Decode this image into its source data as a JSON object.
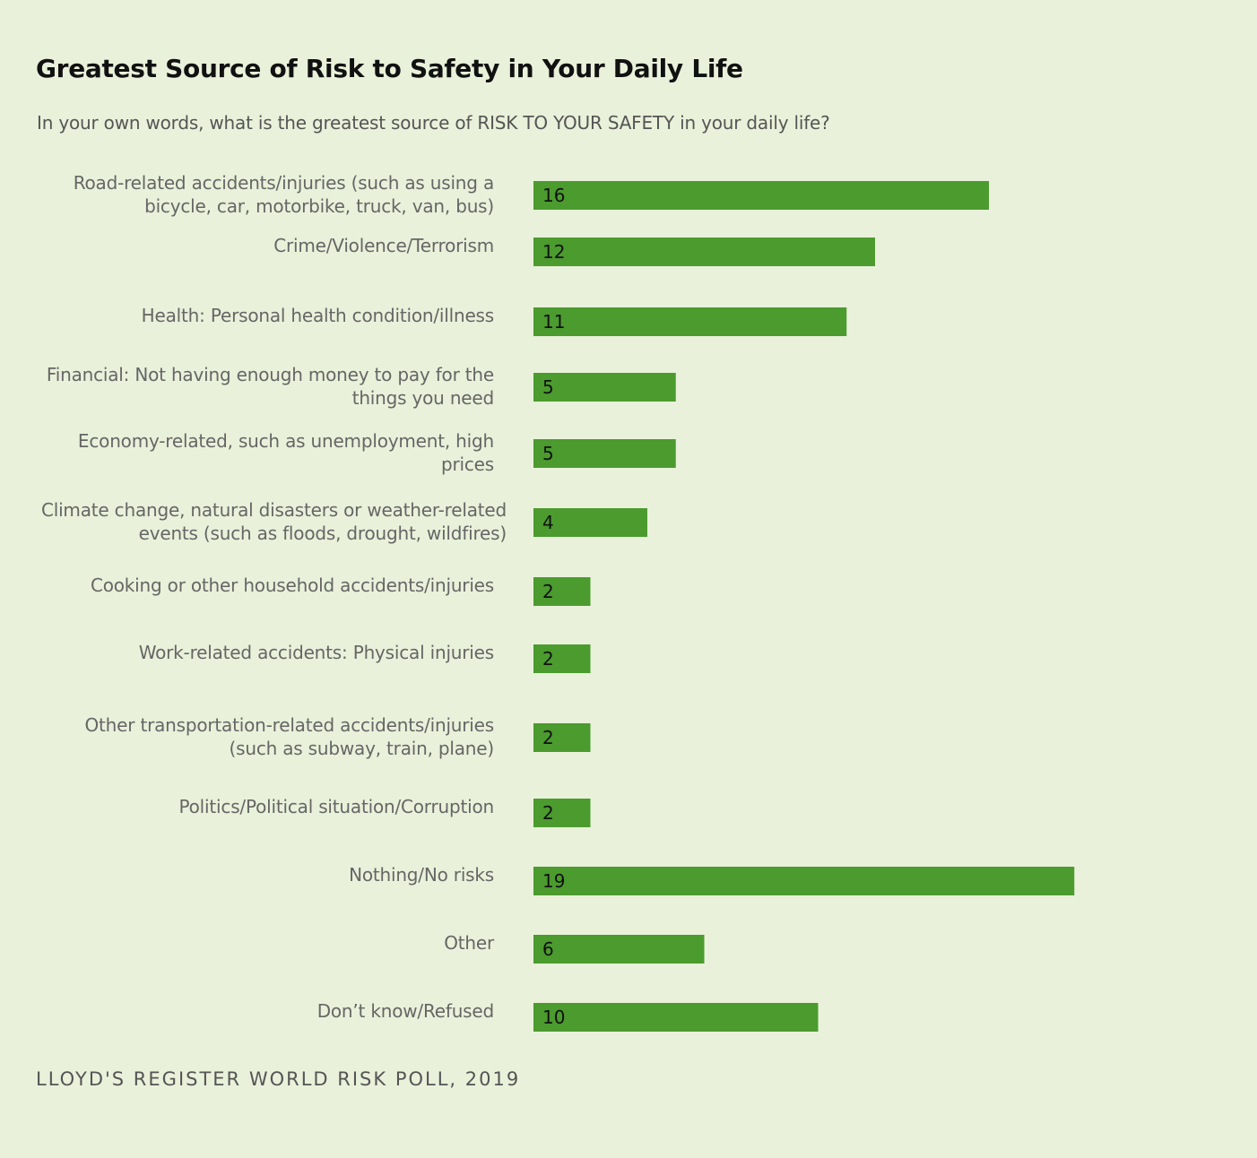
{
  "chart_data": {
    "type": "bar",
    "orientation": "horizontal",
    "title": "Greatest Source of Risk to Safety in Your Daily Life",
    "subtitle": "In your own words, what is the greatest source of RISK TO YOUR SAFETY in your daily life?",
    "categories": [
      "Road-related accidents/injuries (such as using a bicycle, car, motorbike, truck, van, bus)",
      "Crime/Violence/Terrorism",
      "Health: Personal health condition/illness",
      "Financial: Not having enough money to pay for the things you need",
      "Economy-related, such as unemployment, high prices",
      "Climate change, natural disasters or weather-related events (such as floods, drought, wildfires)",
      "Cooking or other household accidents/injuries",
      "Work-related accidents: Physical injuries",
      "Other transportation-related accidents/injuries (such as subway, train, plane)",
      "Politics/Political situation/Corruption",
      "Nothing/No risks",
      "Other",
      "Don’t know/Refused"
    ],
    "category_lines": [
      [
        "Road-related accidents/injuries (such as using a",
        "bicycle, car, motorbike, truck, van, bus)"
      ],
      [
        "Crime/Violence/Terrorism"
      ],
      [
        "Health: Personal health condition/illness"
      ],
      [
        "Financial: Not having enough money to pay for the",
        "things you need"
      ],
      [
        "Economy-related, such as unemployment, high",
        "prices"
      ],
      [
        "Climate change, natural disasters or weather-related",
        "events (such as floods, drought, wildfires)"
      ],
      [
        "Cooking or other household accidents/injuries"
      ],
      [
        "Work-related accidents: Physical injuries"
      ],
      [
        "Other transportation-related accidents/injuries",
        "(such as subway, train, plane)"
      ],
      [
        "Politics/Political situation/Corruption"
      ],
      [
        "Nothing/No risks"
      ],
      [
        "Other"
      ],
      [
        "Don’t know/Refused"
      ]
    ],
    "values": [
      16,
      12,
      11,
      5,
      5,
      4,
      2,
      2,
      2,
      2,
      19,
      6,
      10
    ],
    "bar_color": "#4b9b2e",
    "grid": false
  },
  "source": "LLOYD'S REGISTER WORLD RISK POLL, 2019"
}
